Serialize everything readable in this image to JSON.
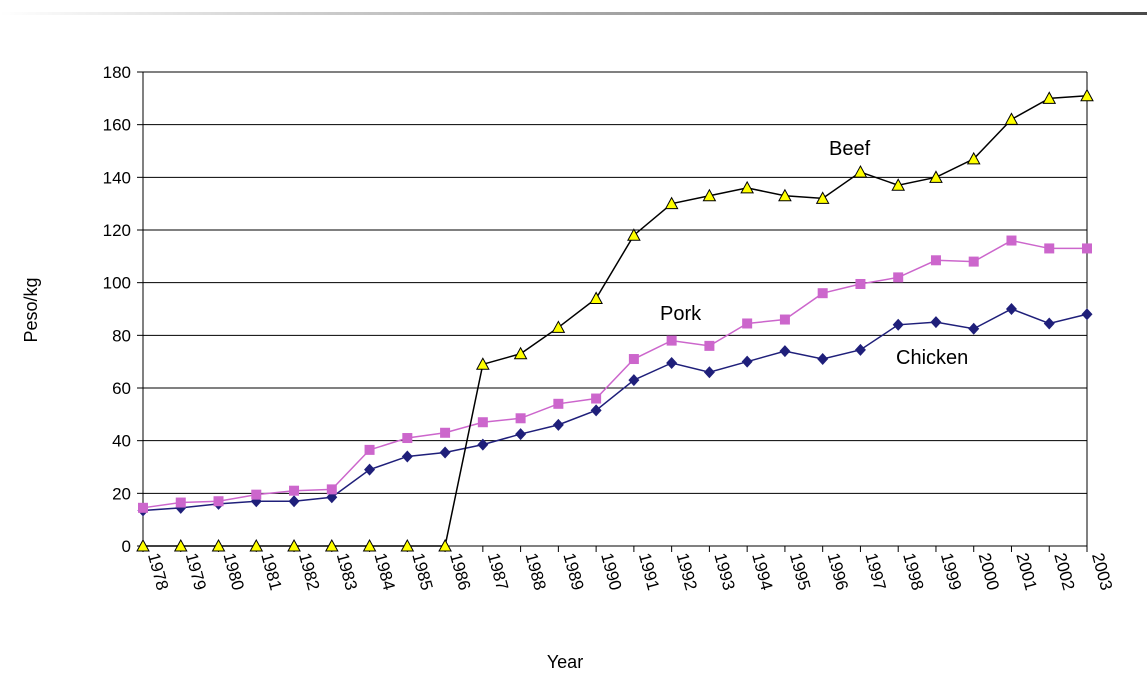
{
  "chart_data": {
    "type": "line",
    "title": "",
    "xlabel": "Year",
    "ylabel": "Peso/kg",
    "ylim": [
      0,
      180
    ],
    "yticks": [
      0,
      20,
      40,
      60,
      80,
      100,
      120,
      140,
      160,
      180
    ],
    "grid": "horizontal",
    "categories": [
      "1978",
      "1979",
      "1980",
      "1981",
      "1982",
      "1983",
      "1984",
      "1985",
      "1986",
      "1987",
      "1988",
      "1989",
      "1990",
      "1991",
      "1992",
      "1993",
      "1994",
      "1995",
      "1996",
      "1997",
      "1998",
      "1999",
      "2000",
      "2001",
      "2002",
      "2003"
    ],
    "series": [
      {
        "name": "Beef",
        "color": "#000000",
        "marker": "triangle",
        "marker_fill": "#ffff00",
        "values": [
          0,
          0,
          0,
          0,
          0,
          0,
          0,
          0,
          0,
          69,
          73,
          83,
          94,
          118,
          130,
          133,
          136,
          133,
          132,
          142,
          137,
          140,
          147,
          162,
          170,
          171
        ]
      },
      {
        "name": "Pork",
        "color": "#cc66cc",
        "marker": "square",
        "marker_fill": "#cc66cc",
        "values": [
          14.5,
          16.5,
          17,
          19.5,
          21,
          21.5,
          36.5,
          41,
          43,
          47,
          48.5,
          54,
          56,
          71,
          78,
          76,
          84.5,
          86,
          96,
          99.5,
          102,
          108.5,
          108,
          116,
          113,
          113
        ]
      },
      {
        "name": "Chicken",
        "color": "#1f1f7a",
        "marker": "diamond",
        "marker_fill": "#1f1f7a",
        "values": [
          13.5,
          14.5,
          16,
          17,
          17,
          18.5,
          29,
          34,
          35.5,
          38.5,
          42.5,
          46,
          51.5,
          63,
          69.5,
          66,
          70,
          74,
          71,
          74.5,
          84,
          85,
          82.5,
          90,
          84.5,
          88
        ]
      }
    ]
  }
}
